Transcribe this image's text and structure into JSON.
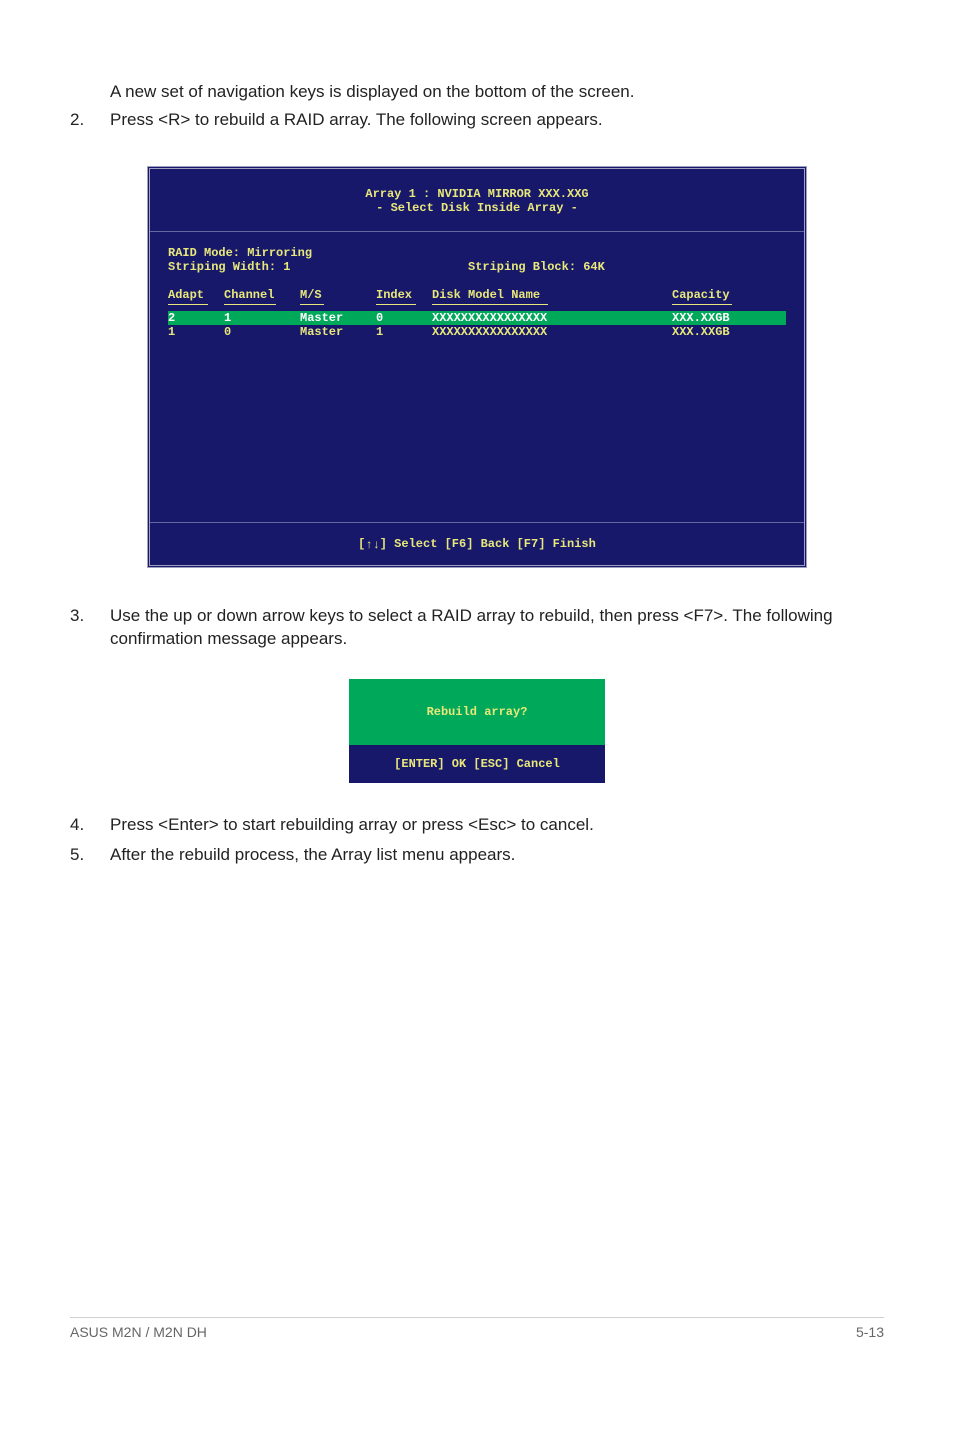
{
  "intro_text": "A new set of  navigation keys is displayed on the bottom of the screen.",
  "step2_num": "2.",
  "step2_text": "Press <R> to rebuild a RAID array. The following screen appears.",
  "bios": {
    "title_line1": "Array 1 : NVIDIA MIRROR  XXX.XXG",
    "title_line2": "- Select Disk Inside Array -",
    "mode_label": "RAID Mode:",
    "mode_value": "Mirroring",
    "width_label": "Striping Width:",
    "width_value": "1",
    "block_label": "Striping Block:",
    "block_value": "64K",
    "columns": {
      "adapt": "Adapt",
      "channel": "Channel",
      "ms": "M/S",
      "index": "Index",
      "model": "Disk Model Name",
      "capacity": "Capacity"
    },
    "rows": [
      {
        "adapt": "2",
        "channel": "1",
        "ms": "Master",
        "index": "0",
        "model": "XXXXXXXXXXXXXXXX",
        "capacity": "XXX.XXGB",
        "selected": true
      },
      {
        "adapt": "1",
        "channel": "0",
        "ms": "Master",
        "index": "1",
        "model": "XXXXXXXXXXXXXXXX",
        "capacity": "XXX.XXGB",
        "selected": false
      }
    ],
    "footer_select": "] Select [F6] Back  [F7] Finish",
    "footer_prefix": "["
  },
  "step3_num": "3.",
  "step3_text": "Use the up or down arrow keys to select a RAID array to rebuild, then press <F7>. The following confirmation message appears.",
  "dialog": {
    "question": "Rebuild array?",
    "actions": "[ENTER] OK  [ESC] Cancel"
  },
  "step4_num": "4.",
  "step4_text": "Press <Enter> to start rebuilding array or press <Esc> to cancel.",
  "step5_num": "5.",
  "step5_text": "After the rebuild process, the Array list menu appears.",
  "footer_left": "ASUS M2N / M2N DH",
  "footer_right": "5-13"
}
